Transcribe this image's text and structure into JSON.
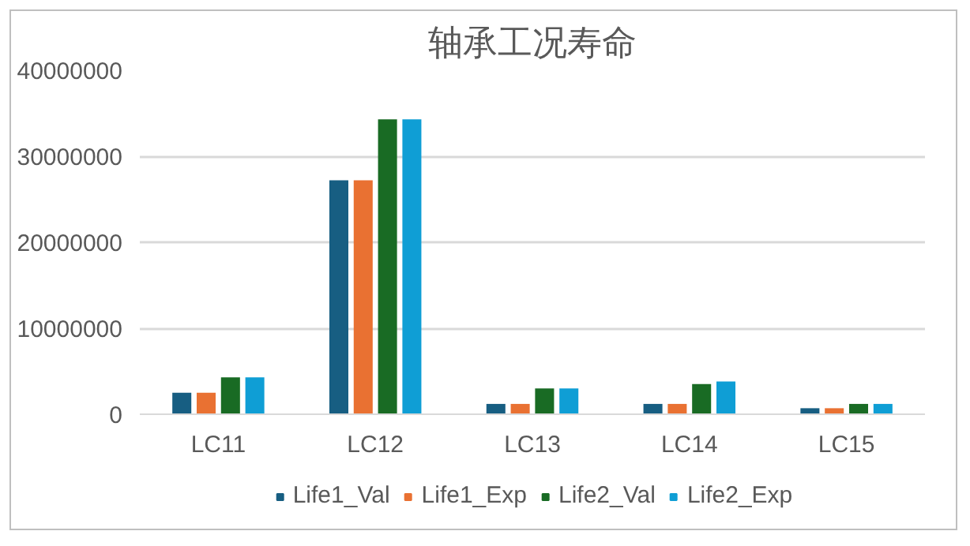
{
  "chart_data": {
    "type": "bar",
    "title": "轴承工况寿命",
    "categories": [
      "LC11",
      "LC12",
      "LC13",
      "LC14",
      "LC15"
    ],
    "series": [
      {
        "name": "Life1_Val",
        "color": "#175e82",
        "values": [
          2500000,
          27200000,
          1200000,
          1200000,
          700000
        ]
      },
      {
        "name": "Life1_Exp",
        "color": "#e97132",
        "values": [
          2500000,
          27200000,
          1200000,
          1200000,
          700000
        ]
      },
      {
        "name": "Life2_Val",
        "color": "#196b24",
        "values": [
          4300000,
          34300000,
          3000000,
          3500000,
          1200000
        ]
      },
      {
        "name": "Life2_Exp",
        "color": "#0f9ed5",
        "values": [
          4300000,
          34300000,
          3000000,
          3800000,
          1200000
        ]
      }
    ],
    "ylim": [
      0,
      40000000
    ],
    "yticks": [
      0,
      10000000,
      20000000,
      30000000,
      40000000
    ],
    "grid": "y",
    "legend": "bottom"
  }
}
